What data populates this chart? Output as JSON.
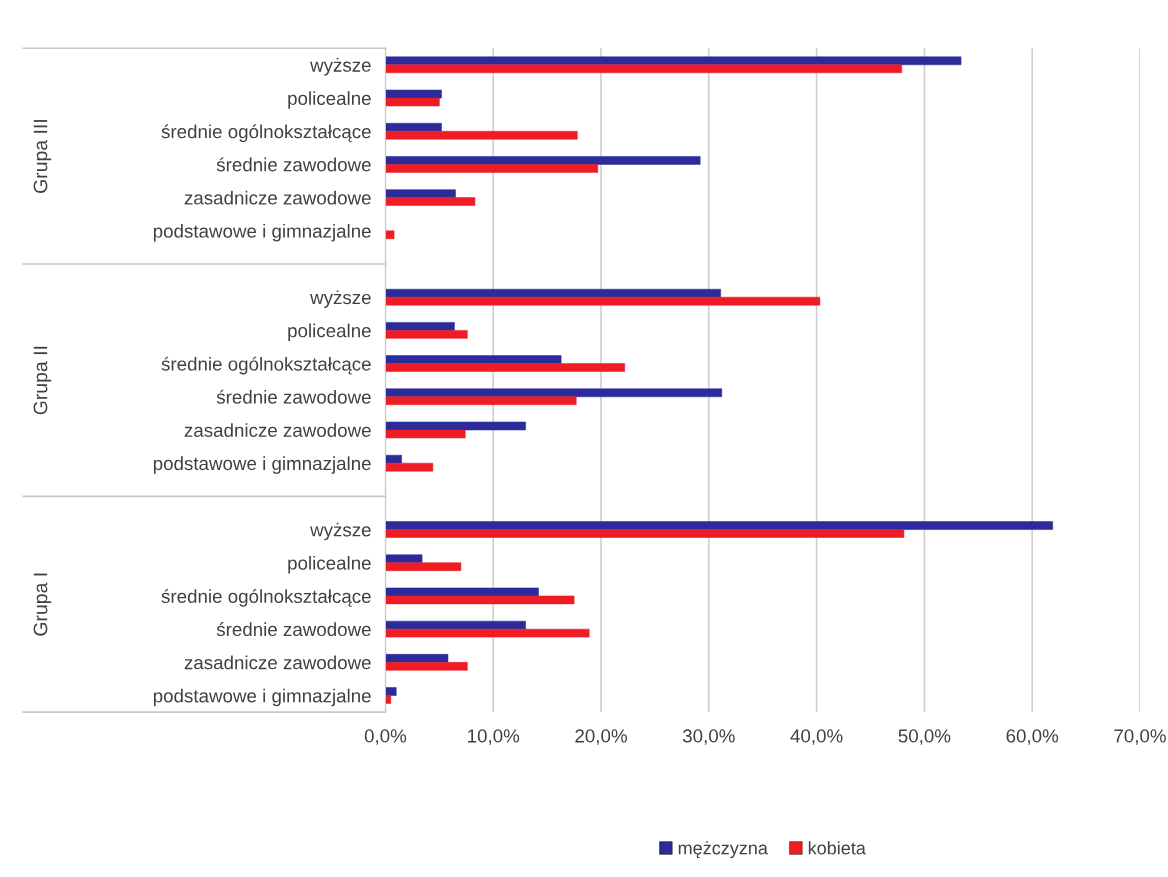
{
  "chart_data": {
    "type": "bar",
    "orientation": "horizontal",
    "categories": [
      "wyższe",
      "policealne",
      "średnie ogólnokształcące",
      "średnie zawodowe",
      "zasadnicze zawodowe",
      "podstawowe i gimnazjalne",
      null,
      "wyższe",
      "policealne",
      "średnie ogólnokształcące",
      "średnie zawodowe",
      "zasadnicze zawodowe",
      "podstawowe i gimnazjalne",
      null,
      "wyższe",
      "policealne",
      "średnie ogólnokształcące",
      "średnie zawodowe",
      "zasadnicze zawodowe",
      "podstawowe i gimnazjalne"
    ],
    "series": [
      {
        "name": "mężczyzna",
        "color": "#2b2b9b",
        "values": [
          53.4,
          5.2,
          5.2,
          29.2,
          6.5,
          0,
          null,
          31.1,
          6.4,
          16.3,
          31.2,
          13.0,
          1.5,
          null,
          61.9,
          3.4,
          14.2,
          13.0,
          5.8,
          1.0
        ]
      },
      {
        "name": "kobieta",
        "color": "#ee1c25",
        "values": [
          47.9,
          5.0,
          17.8,
          19.7,
          8.3,
          0.8,
          null,
          40.3,
          7.6,
          22.2,
          17.7,
          7.4,
          4.4,
          null,
          48.1,
          7.0,
          17.5,
          18.9,
          7.6,
          0.5
        ]
      }
    ],
    "annotations": [
      "Grupa III",
      "Grupa II",
      "Grupa I"
    ],
    "xlim": [
      0,
      70
    ],
    "xticks": [
      {
        "value": 0,
        "label": "0,0%"
      },
      {
        "value": 10,
        "label": "10,0%"
      },
      {
        "value": 20,
        "label": "20,0%"
      },
      {
        "value": 30,
        "label": "30,0%"
      },
      {
        "value": 40,
        "label": "40,0%"
      },
      {
        "value": 50,
        "label": "50,0%"
      },
      {
        "value": 60,
        "label": "60,0%"
      },
      {
        "value": 70,
        "label": "70,0%"
      }
    ],
    "grid": "x",
    "legend": "bottom"
  }
}
